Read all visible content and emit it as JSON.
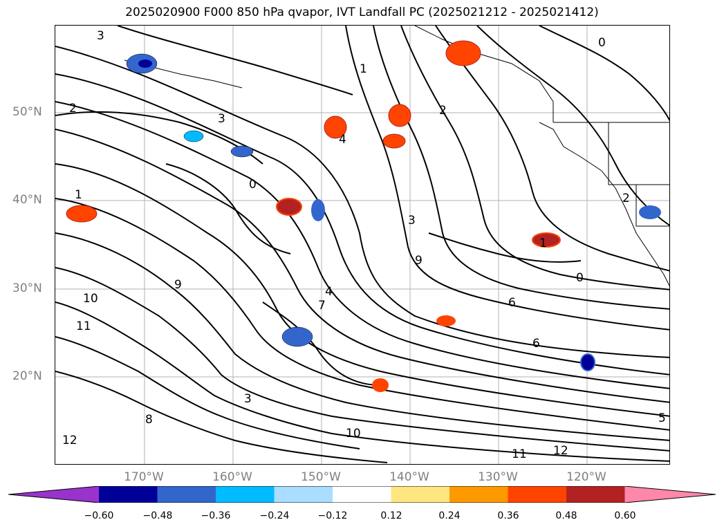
{
  "title": "2025020900 F000 850 hPa qvapor, IVT Landfall PC (2025021212 - 2025021412)",
  "lat_labels": [
    "50°N",
    "40°N",
    "30°N",
    "20°N"
  ],
  "lon_labels": [
    "170°W",
    "160°W",
    "150°W",
    "140°W",
    "130°W",
    "120°W"
  ],
  "colorbar": {
    "levels": [
      "−0.60",
      "−0.48",
      "−0.36",
      "−0.24",
      "−0.12",
      "0.12",
      "0.24",
      "0.36",
      "0.48",
      "0.60"
    ],
    "colors": [
      "#9933cc",
      "#000099",
      "#3366cc",
      "#00bbff",
      "#aaddff",
      "#ffffff",
      "#ffe680",
      "#ff9900",
      "#ff4400",
      "#b22222",
      "#ff88aa"
    ]
  },
  "contour_labels": [
    "3",
    "2",
    "1",
    "0",
    "1",
    "2",
    "3",
    "4",
    "0",
    "1",
    "2",
    "3",
    "6",
    "9",
    "10",
    "11",
    "12",
    "8",
    "5",
    "7",
    "3",
    "4",
    "0",
    "6",
    "9",
    "10",
    "11",
    "12"
  ]
}
